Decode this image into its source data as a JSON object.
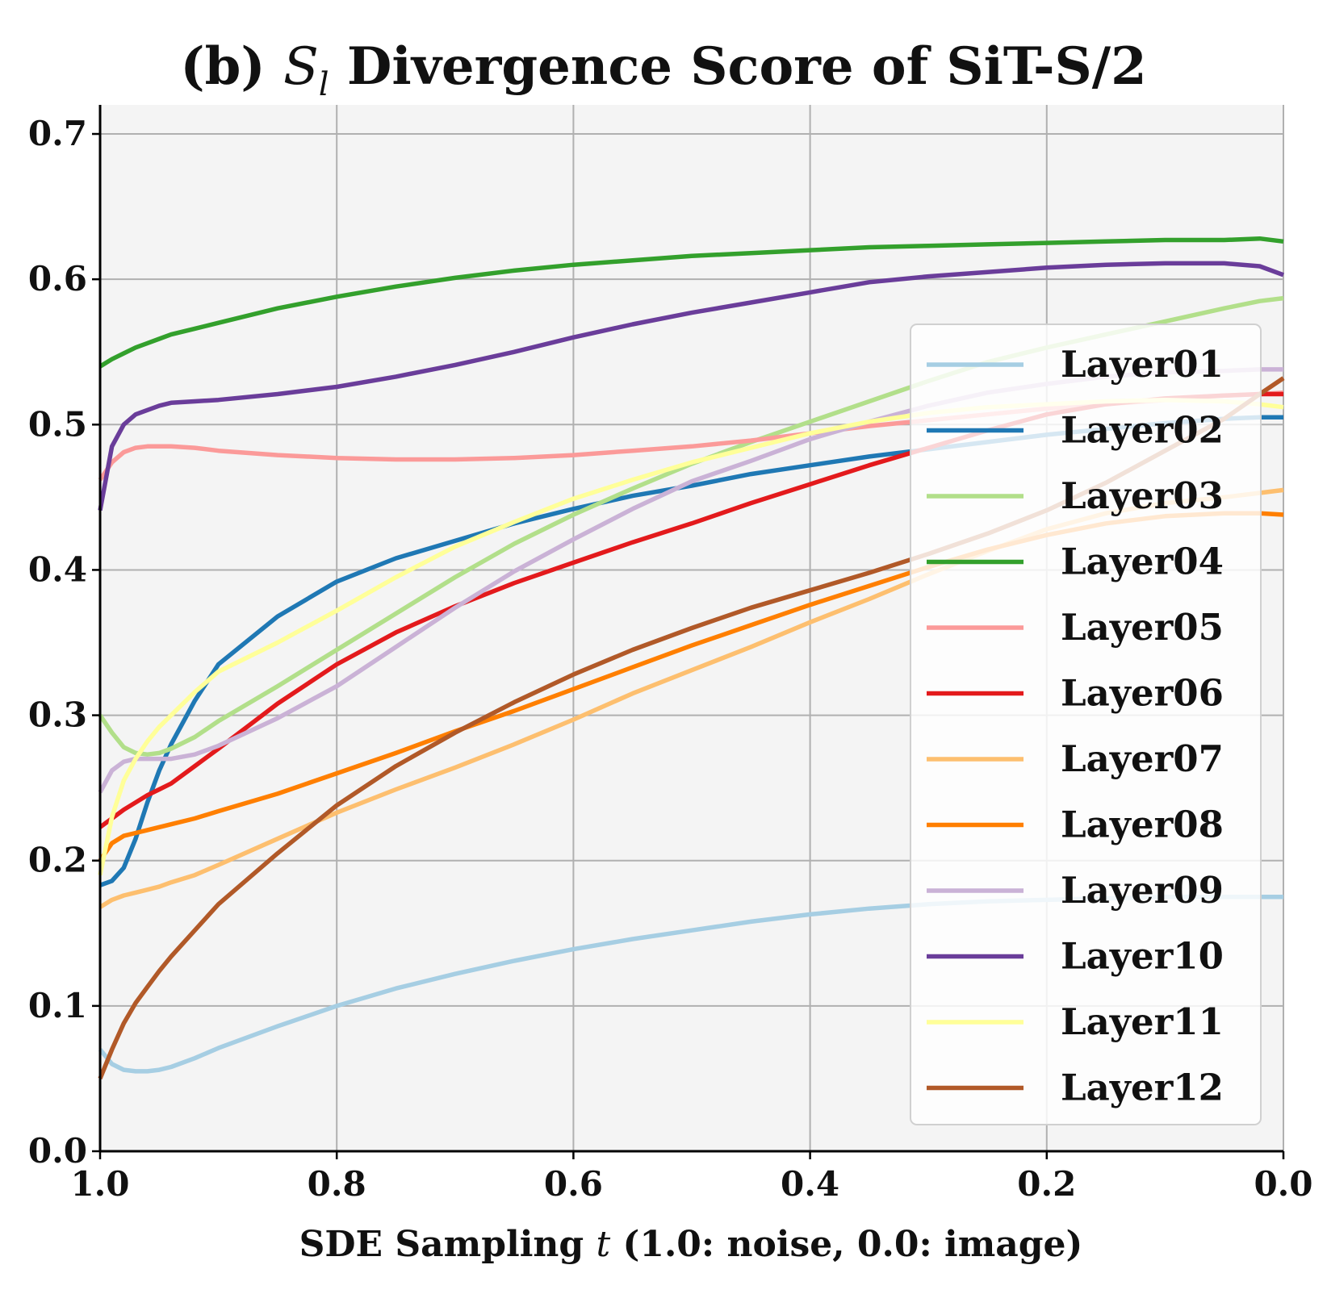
{
  "chart_data": {
    "type": "line",
    "title_prefix": "(b) ",
    "title_symbol": "S",
    "title_subscript": "l",
    "title_suffix": " Divergence Score of SiT-S/2",
    "xlabel_prefix": "SDE Sampling ",
    "xlabel_var": "t",
    "xlabel_suffix": " (1.0: noise, 0.0: image)",
    "ylabel": "",
    "xlim": [
      1.0,
      0.0
    ],
    "ylim": [
      0.0,
      0.72
    ],
    "x_reversed": true,
    "grid": true,
    "legend_position": "center-right",
    "x_ticks": [
      1.0,
      0.8,
      0.6,
      0.4,
      0.2,
      0.0
    ],
    "x_tick_labels": [
      "1.0",
      "0.8",
      "0.6",
      "0.4",
      "0.2",
      "0.0"
    ],
    "y_ticks": [
      0.0,
      0.1,
      0.2,
      0.3,
      0.4,
      0.5,
      0.6,
      0.7
    ],
    "y_tick_labels": [
      "0.0",
      "0.1",
      "0.2",
      "0.3",
      "0.4",
      "0.5",
      "0.6",
      "0.7"
    ],
    "x": [
      1.0,
      0.99,
      0.98,
      0.97,
      0.96,
      0.95,
      0.94,
      0.92,
      0.9,
      0.85,
      0.8,
      0.75,
      0.7,
      0.65,
      0.6,
      0.55,
      0.5,
      0.45,
      0.4,
      0.35,
      0.3,
      0.25,
      0.2,
      0.15,
      0.1,
      0.05,
      0.02,
      0.0
    ],
    "series": [
      {
        "name": "Layer01",
        "color": "#a6cee3",
        "values": [
          0.07,
          0.06,
          0.056,
          0.055,
          0.055,
          0.056,
          0.058,
          0.064,
          0.071,
          0.086,
          0.1,
          0.112,
          0.122,
          0.131,
          0.139,
          0.146,
          0.152,
          0.158,
          0.163,
          0.167,
          0.17,
          0.172,
          0.173,
          0.174,
          0.175,
          0.175,
          0.175,
          0.175
        ]
      },
      {
        "name": "Layer02",
        "color": "#1f78b4",
        "values": [
          0.183,
          0.186,
          0.195,
          0.215,
          0.24,
          0.262,
          0.28,
          0.31,
          0.335,
          0.368,
          0.392,
          0.408,
          0.42,
          0.432,
          0.442,
          0.451,
          0.458,
          0.466,
          0.472,
          0.478,
          0.483,
          0.488,
          0.493,
          0.497,
          0.501,
          0.504,
          0.505,
          0.505
        ]
      },
      {
        "name": "Layer03",
        "color": "#b2df8a",
        "values": [
          0.3,
          0.288,
          0.278,
          0.274,
          0.273,
          0.274,
          0.277,
          0.285,
          0.296,
          0.32,
          0.345,
          0.37,
          0.395,
          0.418,
          0.438,
          0.456,
          0.473,
          0.488,
          0.502,
          0.516,
          0.53,
          0.543,
          0.553,
          0.562,
          0.571,
          0.58,
          0.585,
          0.587
        ]
      },
      {
        "name": "Layer04",
        "color": "#33a02c",
        "values": [
          0.54,
          0.545,
          0.549,
          0.553,
          0.556,
          0.559,
          0.562,
          0.566,
          0.57,
          0.58,
          0.588,
          0.595,
          0.601,
          0.606,
          0.61,
          0.613,
          0.616,
          0.618,
          0.62,
          0.622,
          0.623,
          0.624,
          0.625,
          0.626,
          0.627,
          0.627,
          0.628,
          0.626
        ]
      },
      {
        "name": "Layer05",
        "color": "#fb9a99",
        "values": [
          0.462,
          0.474,
          0.481,
          0.484,
          0.485,
          0.485,
          0.485,
          0.484,
          0.482,
          0.479,
          0.477,
          0.476,
          0.476,
          0.477,
          0.479,
          0.482,
          0.485,
          0.489,
          0.494,
          0.499,
          0.503,
          0.507,
          0.511,
          0.514,
          0.517,
          0.52,
          0.521,
          0.522
        ]
      },
      {
        "name": "Layer06",
        "color": "#e31a1c",
        "values": [
          0.223,
          0.229,
          0.235,
          0.24,
          0.245,
          0.249,
          0.253,
          0.265,
          0.277,
          0.308,
          0.335,
          0.357,
          0.375,
          0.391,
          0.405,
          0.419,
          0.432,
          0.446,
          0.459,
          0.472,
          0.484,
          0.496,
          0.507,
          0.514,
          0.518,
          0.52,
          0.521,
          0.521
        ]
      },
      {
        "name": "Layer07",
        "color": "#fdbf6f",
        "values": [
          0.168,
          0.173,
          0.176,
          0.178,
          0.18,
          0.182,
          0.185,
          0.19,
          0.197,
          0.215,
          0.233,
          0.249,
          0.264,
          0.28,
          0.297,
          0.315,
          0.331,
          0.347,
          0.364,
          0.38,
          0.397,
          0.413,
          0.428,
          0.439,
          0.446,
          0.45,
          0.453,
          0.455
        ]
      },
      {
        "name": "Layer08",
        "color": "#ff7f00",
        "values": [
          0.2,
          0.212,
          0.217,
          0.219,
          0.221,
          0.223,
          0.225,
          0.229,
          0.234,
          0.246,
          0.26,
          0.274,
          0.289,
          0.303,
          0.318,
          0.333,
          0.348,
          0.362,
          0.376,
          0.389,
          0.402,
          0.414,
          0.424,
          0.432,
          0.437,
          0.439,
          0.439,
          0.438
        ]
      },
      {
        "name": "Layer09",
        "color": "#cab2d6",
        "values": [
          0.247,
          0.262,
          0.268,
          0.27,
          0.27,
          0.27,
          0.27,
          0.273,
          0.279,
          0.298,
          0.32,
          0.347,
          0.374,
          0.399,
          0.421,
          0.442,
          0.461,
          0.475,
          0.49,
          0.502,
          0.513,
          0.522,
          0.528,
          0.533,
          0.536,
          0.537,
          0.538,
          0.538
        ]
      },
      {
        "name": "Layer10",
        "color": "#6a3d9a",
        "values": [
          0.441,
          0.485,
          0.5,
          0.507,
          0.51,
          0.513,
          0.515,
          0.516,
          0.517,
          0.521,
          0.526,
          0.533,
          0.541,
          0.55,
          0.56,
          0.569,
          0.577,
          0.584,
          0.591,
          0.598,
          0.602,
          0.605,
          0.608,
          0.61,
          0.611,
          0.611,
          0.609,
          0.603
        ]
      },
      {
        "name": "Layer11",
        "color": "#ffff99",
        "values": [
          0.19,
          0.23,
          0.255,
          0.27,
          0.282,
          0.292,
          0.3,
          0.316,
          0.33,
          0.35,
          0.372,
          0.395,
          0.416,
          0.433,
          0.449,
          0.462,
          0.474,
          0.484,
          0.494,
          0.502,
          0.508,
          0.512,
          0.514,
          0.516,
          0.517,
          0.516,
          0.514,
          0.512
        ]
      },
      {
        "name": "Layer12",
        "color": "#b15928",
        "values": [
          0.05,
          0.07,
          0.088,
          0.102,
          0.113,
          0.124,
          0.134,
          0.152,
          0.17,
          0.205,
          0.238,
          0.265,
          0.288,
          0.309,
          0.328,
          0.345,
          0.36,
          0.374,
          0.386,
          0.398,
          0.411,
          0.425,
          0.441,
          0.46,
          0.482,
          0.504,
          0.521,
          0.532
        ]
      }
    ]
  }
}
